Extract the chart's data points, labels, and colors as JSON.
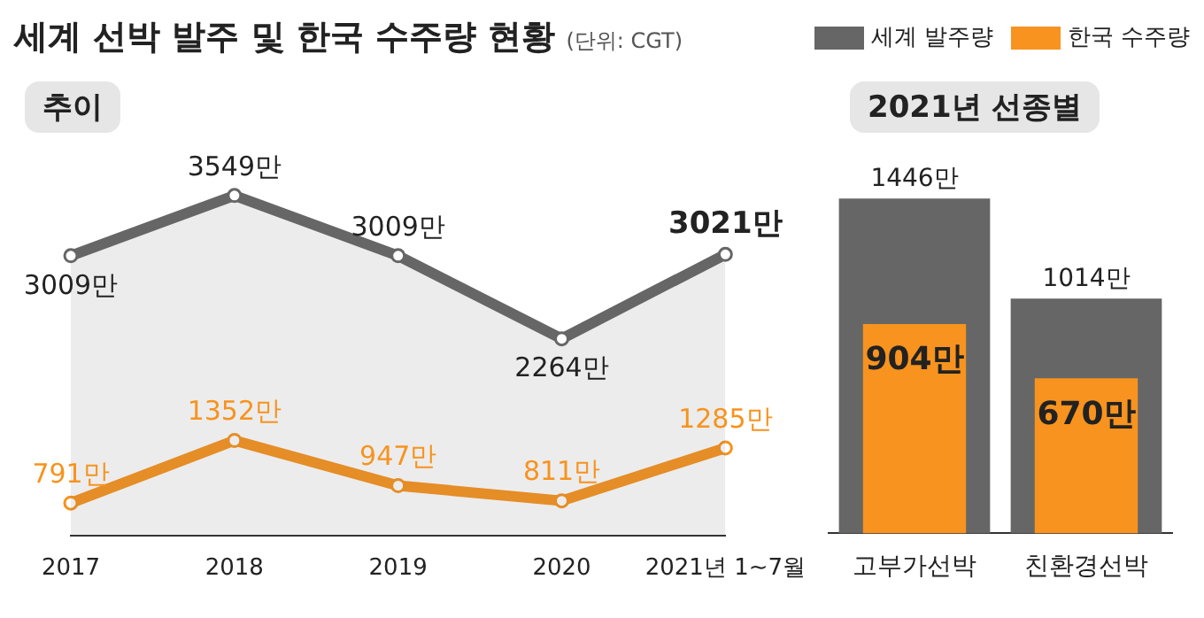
{
  "chart_data": [
    {
      "type": "line",
      "title": "세계 선박 발주 및 한국 수주량 현황",
      "subtitle": "(단위: CGT)",
      "annotations": [
        "추이"
      ],
      "categories": [
        "2017",
        "2018",
        "2019",
        "2020",
        "2021년 1~7월"
      ],
      "marker": "circle",
      "series": [
        {
          "type": "area",
          "color": "#666666",
          "values": [
            3009,
            3549,
            3009,
            2264,
            3021
          ],
          "value_labels": [
            "3009만",
            "3549만",
            "3009만",
            "2264만",
            "3021만"
          ]
        },
        {
          "color": "#f7931e",
          "values": [
            791,
            1352,
            947,
            811,
            1285
          ],
          "value_labels": [
            "791만",
            "1352만",
            "947만",
            "811만",
            "1285만"
          ]
        }
      ]
    },
    {
      "type": "bar",
      "title": "2021년 선종별",
      "categories": [
        "고부가선박",
        "친환경선박"
      ],
      "legend": "top",
      "series": [
        {
          "name": "세계 발주량",
          "color": "#666666",
          "values": [
            1446,
            1014
          ],
          "value_labels": [
            "1446만",
            "1014만"
          ]
        },
        {
          "name": "한국 수주량",
          "color": "#f7931e",
          "values": [
            904,
            670
          ],
          "value_labels": [
            "904만",
            "670만"
          ]
        }
      ]
    }
  ]
}
